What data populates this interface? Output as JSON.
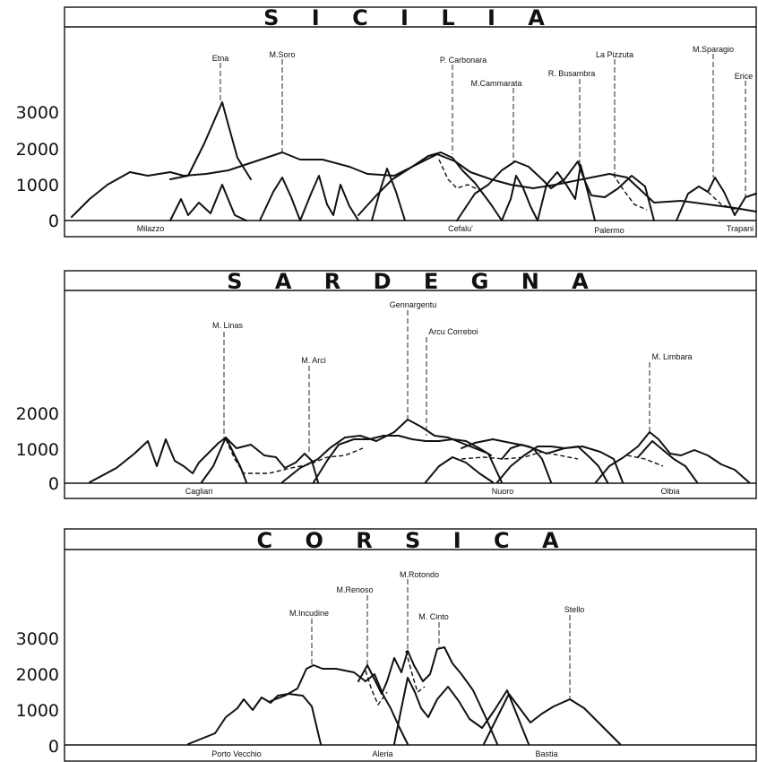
{
  "panels": [
    {
      "title": "S I C I L I A",
      "y_ticks": [
        "0",
        "1000",
        "2000",
        "3000"
      ],
      "peaks": [
        {
          "label": "Etna",
          "elev": 3300
        },
        {
          "label": "M.Soro",
          "elev": 1850
        },
        {
          "label": "P. Carbonara",
          "elev": 1850
        },
        {
          "label": "M.Cammarata",
          "elev": 1580
        },
        {
          "label": "R. Busambra",
          "elev": 1610
        },
        {
          "label": "La Pizzuta",
          "elev": 1300
        },
        {
          "label": "M.Sparagio",
          "elev": 1110
        },
        {
          "label": "Erice",
          "elev": 750
        }
      ],
      "towns": [
        "Milazzo",
        "Cefalu'",
        "Palermo",
        "Trapani"
      ]
    },
    {
      "title": "S A R D E G N A",
      "y_ticks": [
        "0",
        "1000",
        "2000"
      ],
      "peaks": [
        {
          "label": "M. Linas",
          "elev": 1240
        },
        {
          "label": "M. Arci",
          "elev": 810
        },
        {
          "label": "Gennargentu",
          "elev": 1830
        },
        {
          "label": "Arcu Correboi",
          "elev": 1300
        },
        {
          "label": "M. Limbara",
          "elev": 1360
        }
      ],
      "towns": [
        "Cagliari",
        "Nuoro",
        "Olbia"
      ]
    },
    {
      "title": "C O R S I C A",
      "y_ticks": [
        "0",
        "1000",
        "2000",
        "3000"
      ],
      "peaks": [
        {
          "label": "M.Incudine",
          "elev": 2130
        },
        {
          "label": "M.Renoso",
          "elev": 2350
        },
        {
          "label": "M.Rotondo",
          "elev": 2620
        },
        {
          "label": "M. Cinto",
          "elev": 2710
        },
        {
          "label": "Stello",
          "elev": 1300
        }
      ],
      "towns": [
        "Porto Vecchio",
        "Aleria",
        "Bastia"
      ]
    }
  ]
}
